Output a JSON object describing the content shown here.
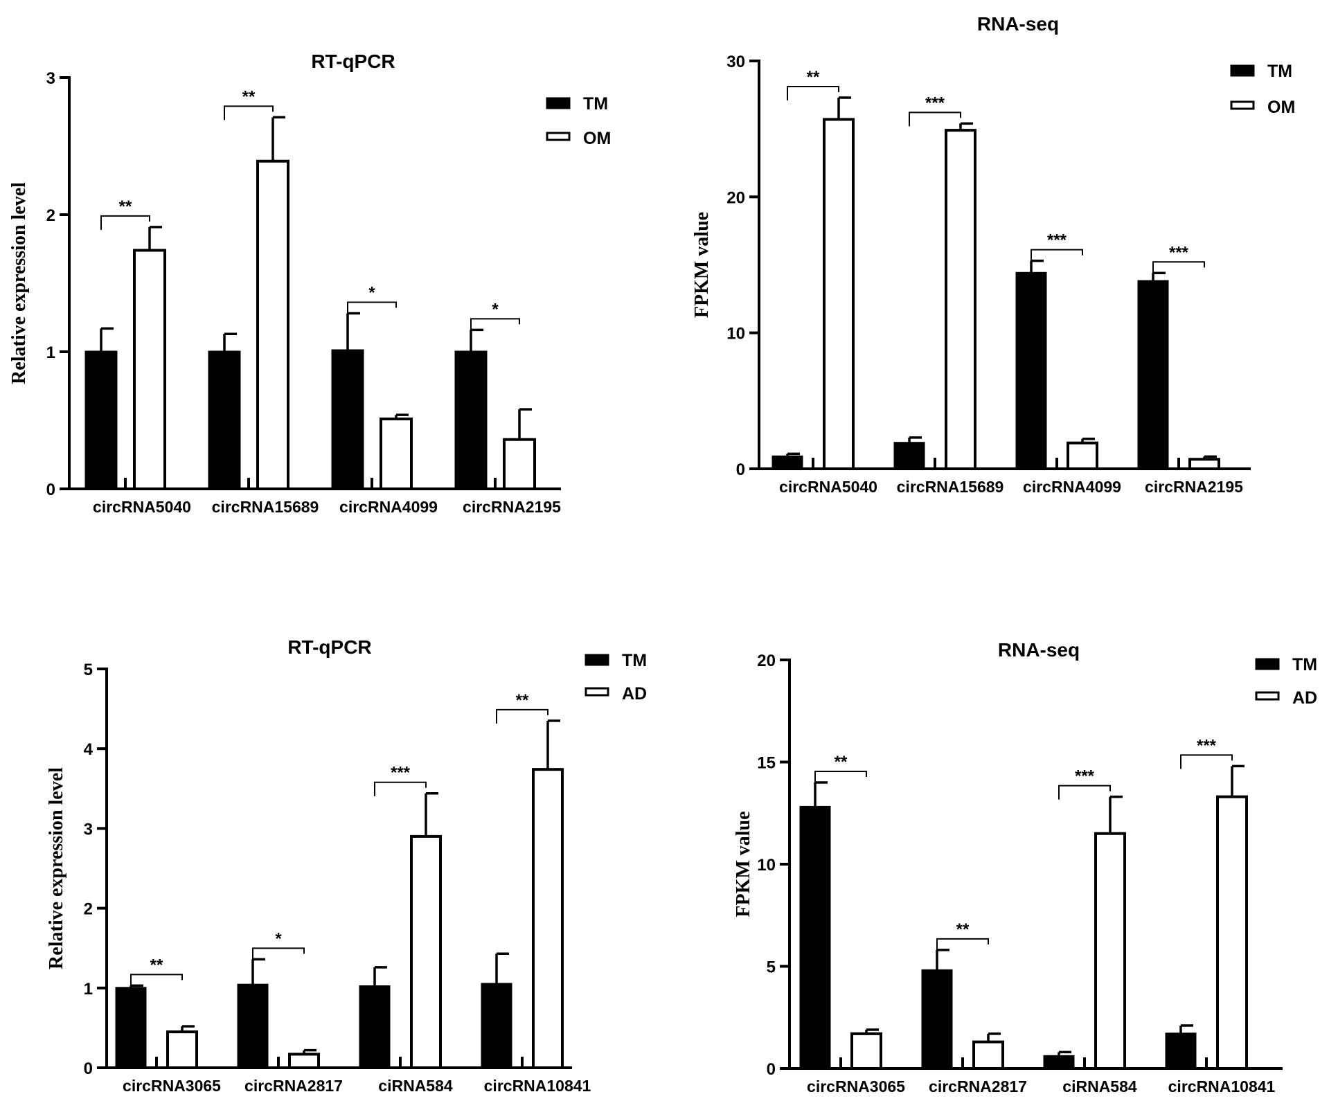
{
  "chart_data": [
    {
      "type": "bar",
      "title": "RT-qPCR",
      "ylabel": "Relative expression level",
      "xlabel": "",
      "ylim": [
        0,
        3
      ],
      "yticks": [
        0,
        1,
        2,
        3
      ],
      "categories": [
        "circRNA5040",
        "circRNA15689",
        "circRNA4099",
        "circRNA2195"
      ],
      "series": [
        {
          "name": "TM",
          "fill": "#000000",
          "values": [
            1.0,
            1.0,
            1.01,
            1.0
          ],
          "errors": [
            0.17,
            0.13,
            0.27,
            0.16
          ]
        },
        {
          "name": "OM",
          "fill": "#ffffff",
          "values": [
            1.74,
            2.39,
            0.51,
            0.36
          ],
          "errors": [
            0.17,
            0.32,
            0.03,
            0.22
          ]
        }
      ],
      "significance": [
        "**",
        "**",
        "*",
        "*"
      ],
      "legend": {
        "position": "top-right",
        "entries": [
          "TM",
          "OM"
        ]
      }
    },
    {
      "type": "bar",
      "title": "RNA-seq",
      "ylabel": "FPKM value",
      "xlabel": "",
      "ylim": [
        0,
        30
      ],
      "yticks": [
        0,
        10,
        20,
        30
      ],
      "categories": [
        "circRNA5040",
        "circRNA15689",
        "circRNA4099",
        "circRNA2195"
      ],
      "series": [
        {
          "name": "TM",
          "fill": "#000000",
          "values": [
            0.9,
            1.9,
            14.4,
            13.8
          ],
          "errors": [
            0.2,
            0.4,
            0.9,
            0.6
          ]
        },
        {
          "name": "OM",
          "fill": "#ffffff",
          "values": [
            25.7,
            24.9,
            1.9,
            0.7
          ],
          "errors": [
            1.6,
            0.5,
            0.3,
            0.2
          ]
        }
      ],
      "significance": [
        "**",
        "***",
        "***",
        "***"
      ],
      "legend": {
        "position": "top-right",
        "entries": [
          "TM",
          "OM"
        ]
      }
    },
    {
      "type": "bar",
      "title": "RT-qPCR",
      "ylabel": "Relative expression level",
      "xlabel": "",
      "ylim": [
        0,
        5
      ],
      "yticks": [
        0,
        1,
        2,
        3,
        4,
        5
      ],
      "categories": [
        "circRNA3065",
        "circRNA2817",
        "ciRNA584",
        "circRNA10841"
      ],
      "series": [
        {
          "name": "TM",
          "fill": "#000000",
          "values": [
            1.0,
            1.04,
            1.02,
            1.05
          ],
          "errors": [
            0.03,
            0.32,
            0.24,
            0.38
          ]
        },
        {
          "name": "AD",
          "fill": "#ffffff",
          "values": [
            0.45,
            0.17,
            2.9,
            3.74
          ],
          "errors": [
            0.07,
            0.05,
            0.54,
            0.61
          ]
        }
      ],
      "significance": [
        "**",
        "*",
        "***",
        "**"
      ],
      "legend": {
        "position": "top-right",
        "entries": [
          "TM",
          "AD"
        ]
      }
    },
    {
      "type": "bar",
      "title": "RNA-seq",
      "ylabel": "FPKM value",
      "xlabel": "",
      "ylim": [
        0,
        20
      ],
      "yticks": [
        0,
        5,
        10,
        15,
        20
      ],
      "categories": [
        "circRNA3065",
        "circRNA2817",
        "ciRNA584",
        "circRNA10841"
      ],
      "series": [
        {
          "name": "TM",
          "fill": "#000000",
          "values": [
            12.8,
            4.8,
            0.6,
            1.7
          ],
          "errors": [
            1.2,
            1.0,
            0.2,
            0.4
          ]
        },
        {
          "name": "AD",
          "fill": "#ffffff",
          "values": [
            1.7,
            1.3,
            11.5,
            13.3
          ],
          "errors": [
            0.2,
            0.4,
            1.8,
            1.5
          ]
        }
      ],
      "significance": [
        "**",
        "**",
        "***",
        "***"
      ],
      "legend": {
        "position": "top-right",
        "entries": [
          "TM",
          "AD"
        ]
      }
    }
  ]
}
